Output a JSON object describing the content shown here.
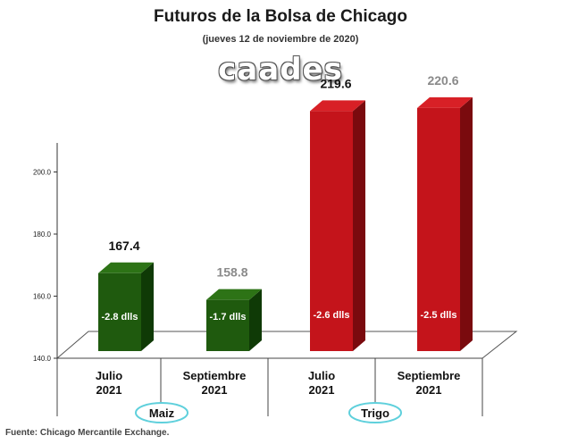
{
  "title": "Futuros de la Bolsa de Chicago",
  "subtitle": "(jueves 12 de noviembre de 2020)",
  "logo_text": "caades",
  "source": "Fuente: Chicago Mercantile Exchange.",
  "colors": {
    "maiz_front": "#1f5a0e",
    "maiz_side": "#0f3a06",
    "maiz_top": "#2d7316",
    "trigo_front": "#c4141b",
    "trigo_side": "#7a0a0e",
    "trigo_top": "#d82026",
    "group_oval": "#5fd0dc"
  },
  "chart_data": {
    "type": "bar",
    "title": "Futuros de la Bolsa de Chicago",
    "subtitle": "(jueves 12 de noviembre de 2020)",
    "categories": [
      "Julio\n2021",
      "Septiembre\n2021",
      "Julio\n2021",
      "Septiembre\n2021"
    ],
    "groups": [
      {
        "name": "Maiz",
        "categories": [
          0,
          1
        ]
      },
      {
        "name": "Trigo",
        "categories": [
          2,
          3
        ]
      }
    ],
    "values": [
      167.4,
      158.8,
      219.6,
      220.6
    ],
    "value_labels": [
      "167.4",
      "158.8",
      "219.6",
      "220.6"
    ],
    "change_labels": [
      "-2.8 dlls",
      "-1.7 dlls",
      "-2.6 dlls",
      "-2.5 dlls"
    ],
    "ylim": [
      140,
      210
    ],
    "yticks": [
      140,
      160,
      180,
      200
    ],
    "ytick_labels": [
      "140.0",
      "160.0",
      "180.0",
      "200.0"
    ],
    "grid": false,
    "legend": "none"
  }
}
